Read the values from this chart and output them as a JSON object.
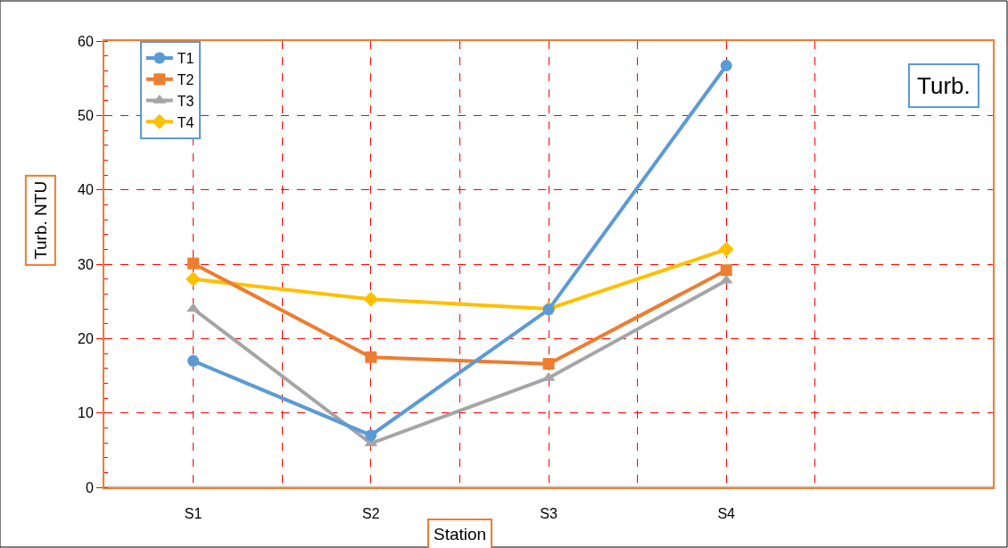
{
  "chart_data": {
    "type": "line",
    "xlabel": "Station",
    "ylabel": "Turb. NTU",
    "annotations": [
      "Turb."
    ],
    "categories": [
      "S1",
      "S2",
      "S3",
      "S4",
      null
    ],
    "series": [
      {
        "name": "T1",
        "color": "#5b9bd5",
        "marker": "circle",
        "values": [
          17.0,
          7.0,
          23.9,
          56.7,
          null
        ]
      },
      {
        "name": "T2",
        "color": "#ed7d31",
        "marker": "square",
        "values": [
          30.1,
          17.5,
          16.6,
          29.2,
          null
        ]
      },
      {
        "name": "T3",
        "color": "#a5a5a5",
        "marker": "triangle",
        "values": [
          24.0,
          5.9,
          14.7,
          27.8,
          null
        ]
      },
      {
        "name": "T4",
        "color": "#ffc000",
        "marker": "diamond",
        "values": [
          28.0,
          25.3,
          24.0,
          32.0,
          null
        ]
      }
    ],
    "ylim": [
      0,
      60
    ],
    "yticks": [
      0,
      10,
      20,
      30,
      40,
      50,
      60
    ],
    "grid": true,
    "legend": "top left",
    "line_style": "solid"
  }
}
